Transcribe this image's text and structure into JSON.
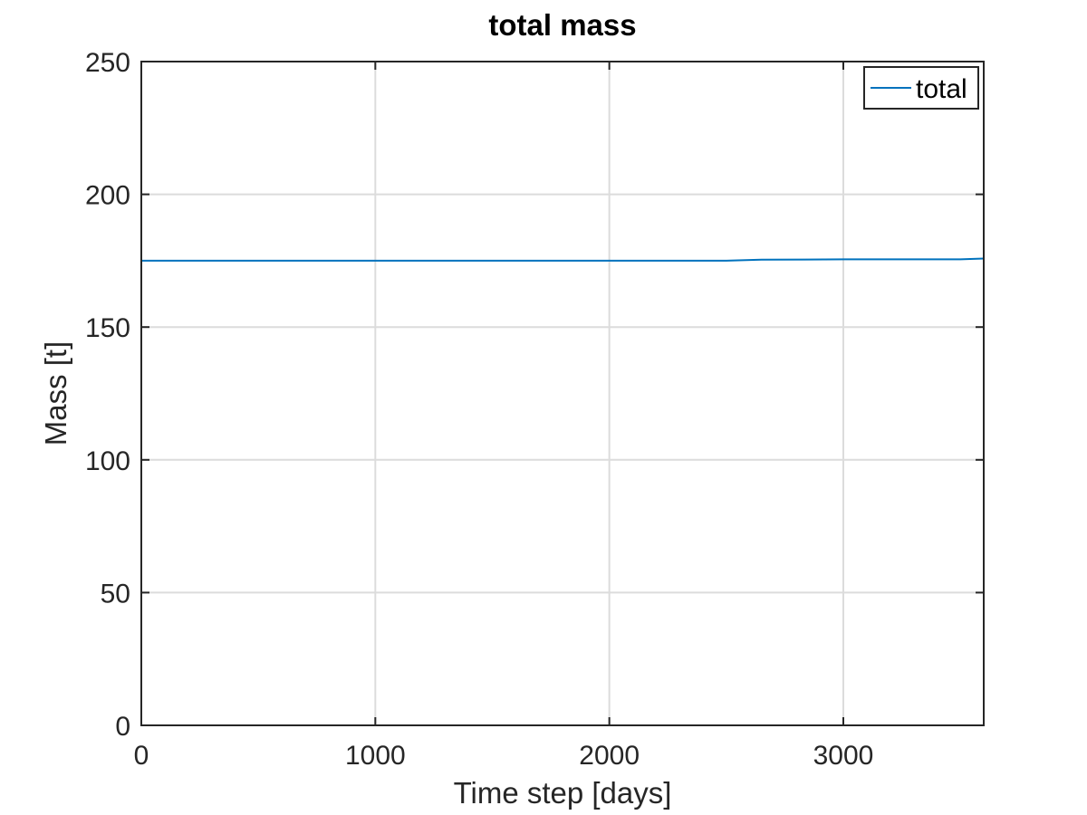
{
  "chart_data": {
    "type": "line",
    "title": "total mass",
    "xlabel": "Time step [days]",
    "ylabel": "Mass [t]",
    "xlim": [
      0,
      3600
    ],
    "ylim": [
      0,
      250
    ],
    "xticks": [
      0,
      1000,
      2000,
      3000
    ],
    "yticks": [
      0,
      50,
      100,
      150,
      200,
      250
    ],
    "grid": true,
    "legend_position": "top-right",
    "series": [
      {
        "name": "total",
        "color": "#0072BD",
        "x": [
          0,
          500,
          1000,
          1500,
          2000,
          2500,
          2650,
          3000,
          3500,
          3600
        ],
        "y": [
          175,
          175,
          175,
          175,
          175,
          175,
          175.4,
          175.5,
          175.5,
          175.8
        ]
      }
    ]
  }
}
